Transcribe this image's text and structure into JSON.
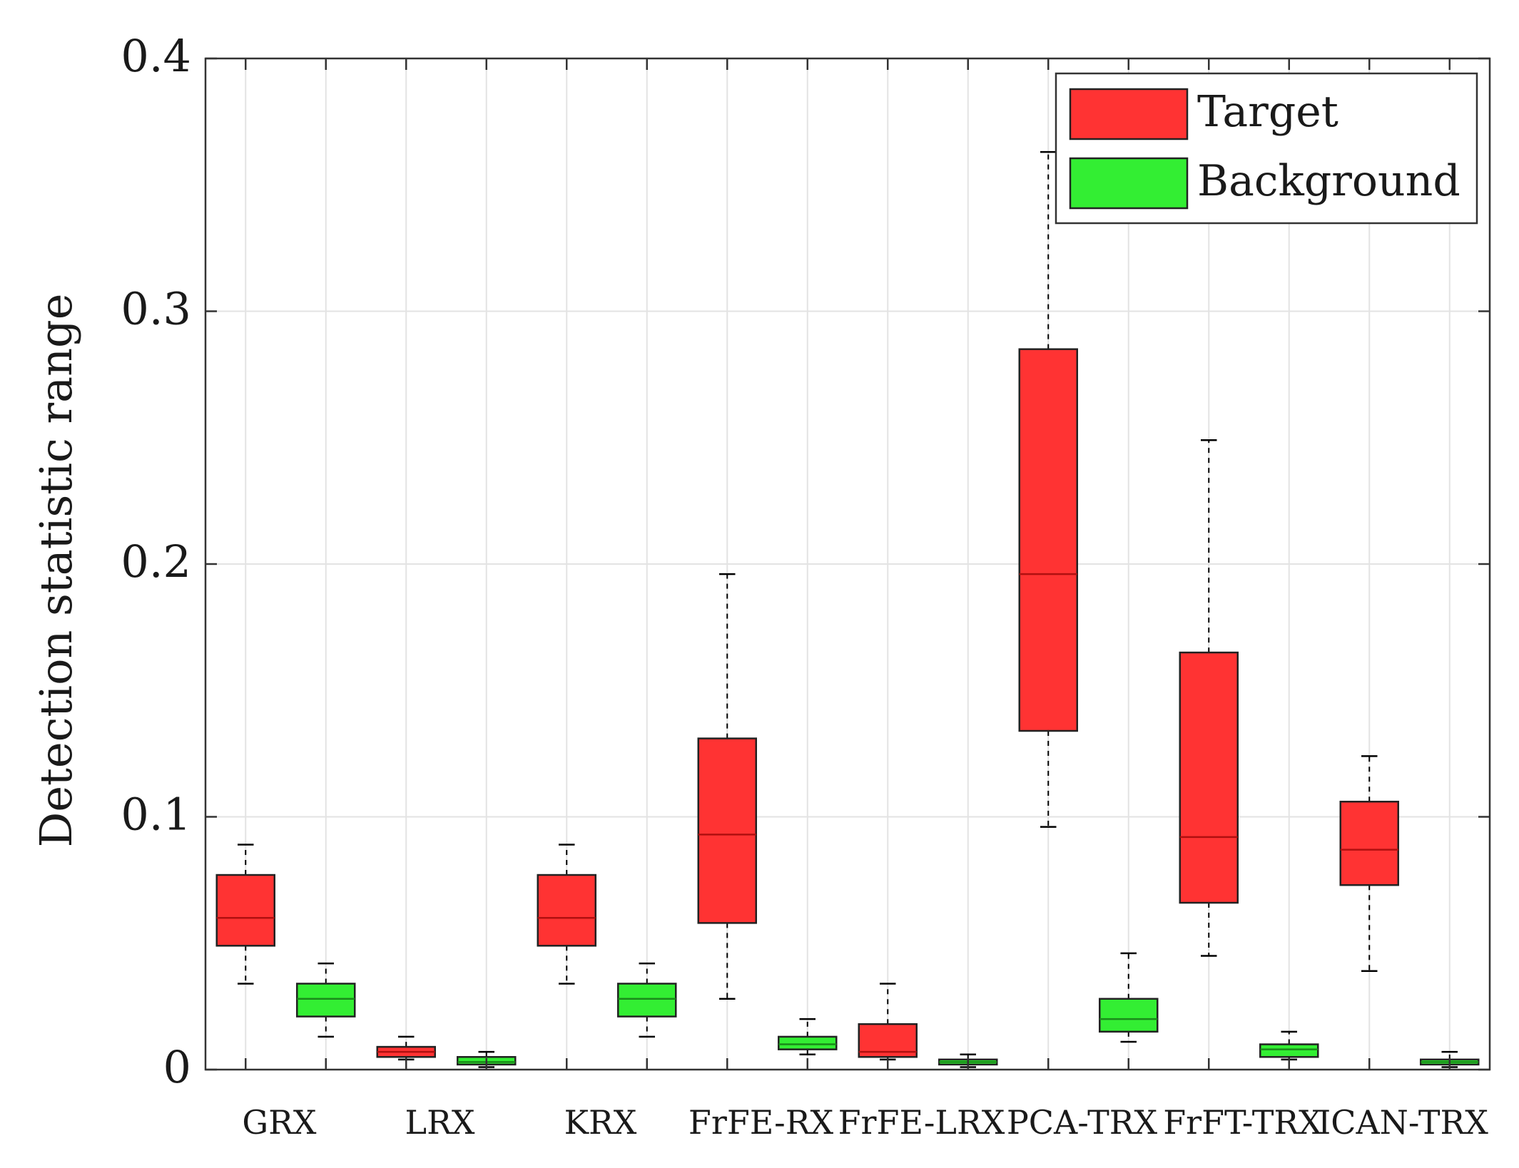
{
  "chart_data": {
    "type": "box",
    "xlabel": "",
    "ylabel": "Detection statistic range",
    "ylim": [
      0,
      0.4
    ],
    "yticks": [
      0,
      0.1,
      0.2,
      0.3,
      0.4
    ],
    "ytick_labels": [
      "0",
      "0.1",
      "0.2",
      "0.3",
      "0.4"
    ],
    "grid": true,
    "legend_position": "top-right",
    "categories": [
      "GRX",
      "LRX",
      "KRX",
      "FrFE-RX",
      "FrFE-LRX",
      "PCA-TRX",
      "FrFT-TRX",
      "ICAN-TRX"
    ],
    "series": [
      {
        "name": "Target",
        "color": "#ff3333",
        "boxes": [
          {
            "whisker_low": 0.034,
            "q1": 0.049,
            "median": 0.06,
            "q3": 0.077,
            "whisker_high": 0.089
          },
          {
            "whisker_low": 0.004,
            "q1": 0.005,
            "median": 0.007,
            "q3": 0.009,
            "whisker_high": 0.013
          },
          {
            "whisker_low": 0.034,
            "q1": 0.049,
            "median": 0.06,
            "q3": 0.077,
            "whisker_high": 0.089
          },
          {
            "whisker_low": 0.028,
            "q1": 0.058,
            "median": 0.093,
            "q3": 0.131,
            "whisker_high": 0.196
          },
          {
            "whisker_low": 0.004,
            "q1": 0.005,
            "median": 0.007,
            "q3": 0.018,
            "whisker_high": 0.034
          },
          {
            "whisker_low": 0.096,
            "q1": 0.134,
            "median": 0.196,
            "q3": 0.285,
            "whisker_high": 0.363
          },
          {
            "whisker_low": 0.045,
            "q1": 0.066,
            "median": 0.092,
            "q3": 0.165,
            "whisker_high": 0.249
          },
          {
            "whisker_low": 0.039,
            "q1": 0.073,
            "median": 0.087,
            "q3": 0.106,
            "whisker_high": 0.124
          }
        ]
      },
      {
        "name": "Background",
        "color": "#33ee33",
        "boxes": [
          {
            "whisker_low": 0.013,
            "q1": 0.021,
            "median": 0.028,
            "q3": 0.034,
            "whisker_high": 0.042
          },
          {
            "whisker_low": 0.001,
            "q1": 0.002,
            "median": 0.003,
            "q3": 0.005,
            "whisker_high": 0.007
          },
          {
            "whisker_low": 0.013,
            "q1": 0.021,
            "median": 0.028,
            "q3": 0.034,
            "whisker_high": 0.042
          },
          {
            "whisker_low": 0.006,
            "q1": 0.008,
            "median": 0.01,
            "q3": 0.013,
            "whisker_high": 0.02
          },
          {
            "whisker_low": 0.001,
            "q1": 0.002,
            "median": 0.003,
            "q3": 0.004,
            "whisker_high": 0.006
          },
          {
            "whisker_low": 0.011,
            "q1": 0.015,
            "median": 0.02,
            "q3": 0.028,
            "whisker_high": 0.046
          },
          {
            "whisker_low": 0.004,
            "q1": 0.005,
            "median": 0.008,
            "q3": 0.01,
            "whisker_high": 0.015
          },
          {
            "whisker_low": 0.001,
            "q1": 0.002,
            "median": 0.003,
            "q3": 0.004,
            "whisker_high": 0.007
          }
        ]
      }
    ]
  }
}
